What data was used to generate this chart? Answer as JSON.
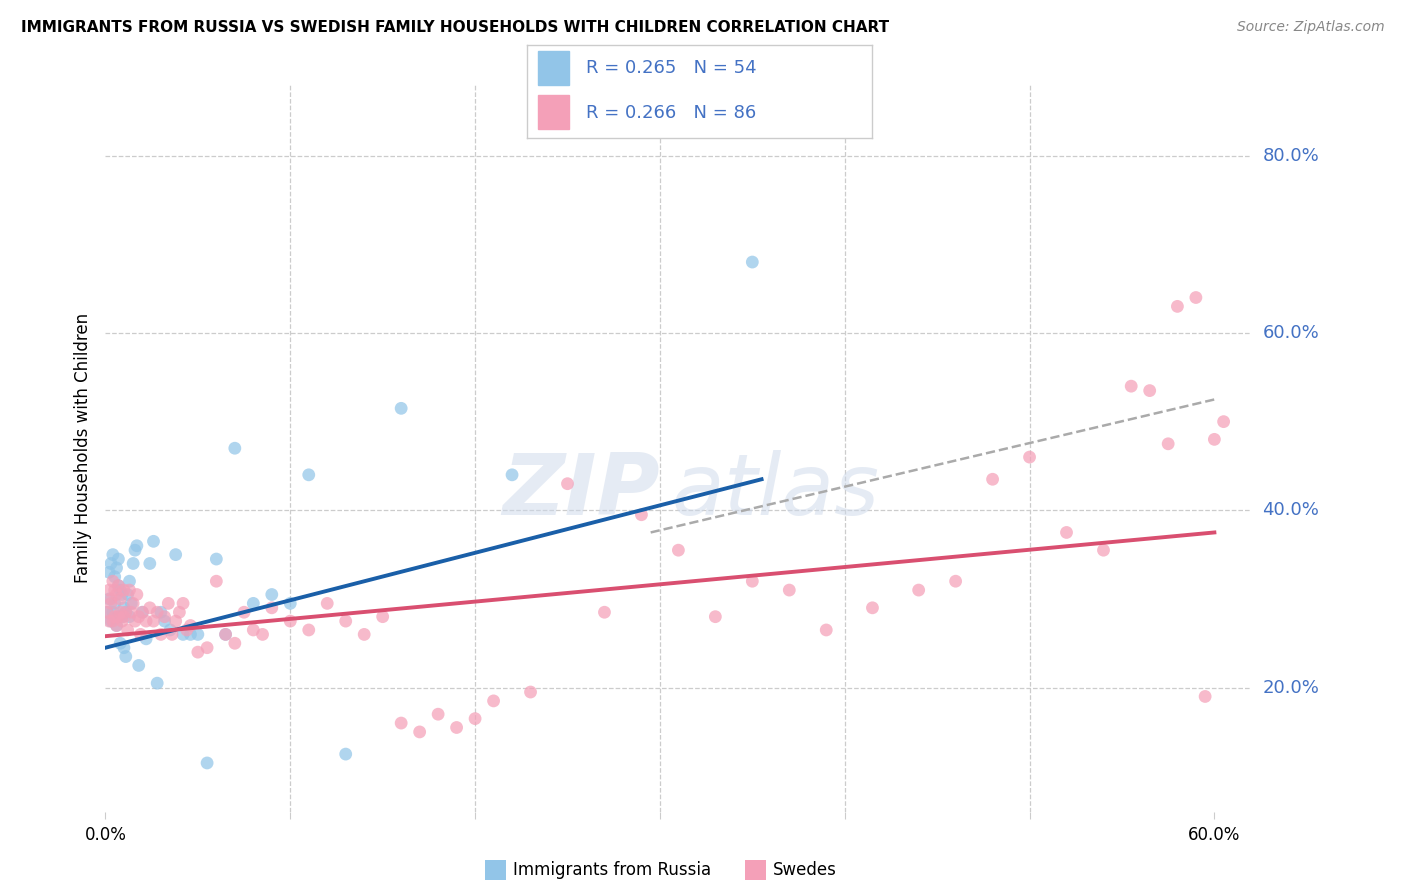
{
  "title": "IMMIGRANTS FROM RUSSIA VS SWEDISH FAMILY HOUSEHOLDS WITH CHILDREN CORRELATION CHART",
  "source": "Source: ZipAtlas.com",
  "ylabel": "Family Households with Children",
  "xlim": [
    0.0,
    0.62
  ],
  "ylim": [
    0.06,
    0.88
  ],
  "yticks": [
    0.2,
    0.4,
    0.6,
    0.8
  ],
  "ytick_labels": [
    "20.0%",
    "40.0%",
    "60.0%",
    "80.0%"
  ],
  "legend_r1": "R = 0.265",
  "legend_n1": "N = 54",
  "legend_r2": "R = 0.266",
  "legend_n2": "N = 86",
  "legend_label1": "Immigrants from Russia",
  "legend_label2": "Swedes",
  "blue_color": "#92c5e8",
  "pink_color": "#f4a0b8",
  "blue_line_color": "#1a5fa8",
  "pink_line_color": "#d94f70",
  "dashed_line_color": "#aaaaaa",
  "legend_text_color": "#4472c4",
  "background_color": "#ffffff",
  "grid_color": "#cccccc",
  "blue_line_x0": 0.0,
  "blue_line_y0": 0.245,
  "blue_line_x1": 0.355,
  "blue_line_y1": 0.435,
  "pink_line_x0": 0.0,
  "pink_line_y0": 0.258,
  "pink_line_x1": 0.6,
  "pink_line_y1": 0.375,
  "dash_line_x0": 0.295,
  "dash_line_y0": 0.375,
  "dash_line_x1": 0.6,
  "dash_line_y1": 0.525,
  "blue_x": [
    0.001,
    0.002,
    0.002,
    0.003,
    0.003,
    0.004,
    0.004,
    0.005,
    0.005,
    0.006,
    0.006,
    0.007,
    0.007,
    0.007,
    0.008,
    0.008,
    0.009,
    0.009,
    0.01,
    0.01,
    0.011,
    0.011,
    0.012,
    0.013,
    0.013,
    0.014,
    0.015,
    0.016,
    0.017,
    0.018,
    0.02,
    0.022,
    0.024,
    0.026,
    0.028,
    0.03,
    0.032,
    0.035,
    0.038,
    0.042,
    0.046,
    0.05,
    0.055,
    0.06,
    0.065,
    0.07,
    0.08,
    0.09,
    0.1,
    0.11,
    0.13,
    0.16,
    0.22,
    0.35
  ],
  "blue_y": [
    0.285,
    0.3,
    0.33,
    0.275,
    0.34,
    0.285,
    0.35,
    0.295,
    0.325,
    0.27,
    0.335,
    0.28,
    0.315,
    0.345,
    0.25,
    0.31,
    0.28,
    0.305,
    0.29,
    0.245,
    0.235,
    0.285,
    0.305,
    0.32,
    0.28,
    0.295,
    0.34,
    0.355,
    0.36,
    0.225,
    0.285,
    0.255,
    0.34,
    0.365,
    0.205,
    0.285,
    0.275,
    0.265,
    0.35,
    0.26,
    0.26,
    0.26,
    0.115,
    0.345,
    0.26,
    0.47,
    0.295,
    0.305,
    0.295,
    0.44,
    0.125,
    0.515,
    0.44,
    0.68
  ],
  "pink_x": [
    0.001,
    0.002,
    0.002,
    0.003,
    0.003,
    0.004,
    0.004,
    0.005,
    0.005,
    0.006,
    0.006,
    0.007,
    0.007,
    0.008,
    0.008,
    0.009,
    0.01,
    0.01,
    0.011,
    0.012,
    0.013,
    0.014,
    0.015,
    0.016,
    0.017,
    0.018,
    0.019,
    0.02,
    0.022,
    0.024,
    0.026,
    0.028,
    0.03,
    0.032,
    0.034,
    0.036,
    0.038,
    0.04,
    0.042,
    0.044,
    0.046,
    0.05,
    0.055,
    0.06,
    0.065,
    0.07,
    0.075,
    0.08,
    0.085,
    0.09,
    0.1,
    0.11,
    0.12,
    0.13,
    0.14,
    0.15,
    0.16,
    0.17,
    0.18,
    0.19,
    0.2,
    0.21,
    0.23,
    0.25,
    0.27,
    0.29,
    0.31,
    0.33,
    0.35,
    0.37,
    0.39,
    0.415,
    0.44,
    0.46,
    0.48,
    0.5,
    0.52,
    0.54,
    0.555,
    0.565,
    0.575,
    0.58,
    0.59,
    0.595,
    0.6,
    0.605
  ],
  "pink_y": [
    0.285,
    0.275,
    0.31,
    0.295,
    0.3,
    0.275,
    0.32,
    0.28,
    0.31,
    0.27,
    0.305,
    0.28,
    0.315,
    0.285,
    0.3,
    0.275,
    0.28,
    0.31,
    0.285,
    0.265,
    0.31,
    0.285,
    0.295,
    0.275,
    0.305,
    0.28,
    0.26,
    0.285,
    0.275,
    0.29,
    0.275,
    0.285,
    0.26,
    0.28,
    0.295,
    0.26,
    0.275,
    0.285,
    0.295,
    0.265,
    0.27,
    0.24,
    0.245,
    0.32,
    0.26,
    0.25,
    0.285,
    0.265,
    0.26,
    0.29,
    0.275,
    0.265,
    0.295,
    0.275,
    0.26,
    0.28,
    0.16,
    0.15,
    0.17,
    0.155,
    0.165,
    0.185,
    0.195,
    0.43,
    0.285,
    0.395,
    0.355,
    0.28,
    0.32,
    0.31,
    0.265,
    0.29,
    0.31,
    0.32,
    0.435,
    0.46,
    0.375,
    0.355,
    0.54,
    0.535,
    0.475,
    0.63,
    0.64,
    0.19,
    0.48,
    0.5
  ]
}
